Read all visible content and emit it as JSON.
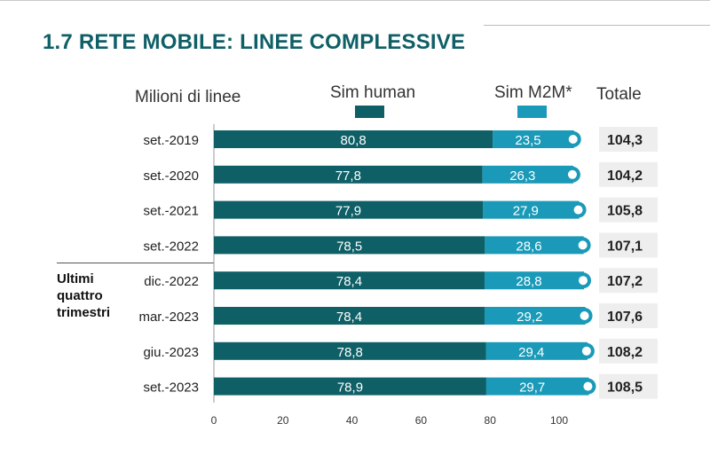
{
  "title": "1.7 RETE MOBILE: LINEE COMPLESSIVE",
  "unit_label": "Milioni di linee",
  "total_header": "Totale",
  "group_label": [
    "Ultimi",
    "quattro",
    "trimestri"
  ],
  "colors": {
    "title": "#0e5f66",
    "sim_human": "#0e5f66",
    "sim_m2m": "#1a9ab8",
    "total_box": "#eeeeee"
  },
  "chart_data": {
    "type": "bar",
    "orientation": "horizontal",
    "stacked": true,
    "categories": [
      "set.-2019",
      "set.-2020",
      "set.-2021",
      "set.-2022",
      "dic.-2022",
      "mar.-2023",
      "giu.-2023",
      "set.-2023"
    ],
    "series": [
      {
        "name": "Sim human",
        "values": [
          80.8,
          77.8,
          77.9,
          78.5,
          78.4,
          78.4,
          78.8,
          78.9
        ],
        "labels": [
          "80,8",
          "77,8",
          "77,9",
          "78,5",
          "78,4",
          "78,4",
          "78,8",
          "78,9"
        ]
      },
      {
        "name": "Sim M2M*",
        "values": [
          23.5,
          26.3,
          27.9,
          28.6,
          28.8,
          29.2,
          29.4,
          29.7
        ],
        "labels": [
          "23,5",
          "26,3",
          "27,9",
          "28,6",
          "28,8",
          "29,2",
          "29,4",
          "29,7"
        ]
      }
    ],
    "totals": [
      104.3,
      104.2,
      105.8,
      107.1,
      107.2,
      107.6,
      108.2,
      108.5
    ],
    "total_labels": [
      "104,3",
      "104,2",
      "105,8",
      "107,1",
      "107,2",
      "107,6",
      "108,2",
      "108,5"
    ],
    "xlim": [
      0,
      100
    ],
    "xticks": [
      0,
      20,
      40,
      60,
      80,
      100
    ],
    "xlabel": "",
    "ylabel": "",
    "grid": false,
    "legend": "top"
  }
}
